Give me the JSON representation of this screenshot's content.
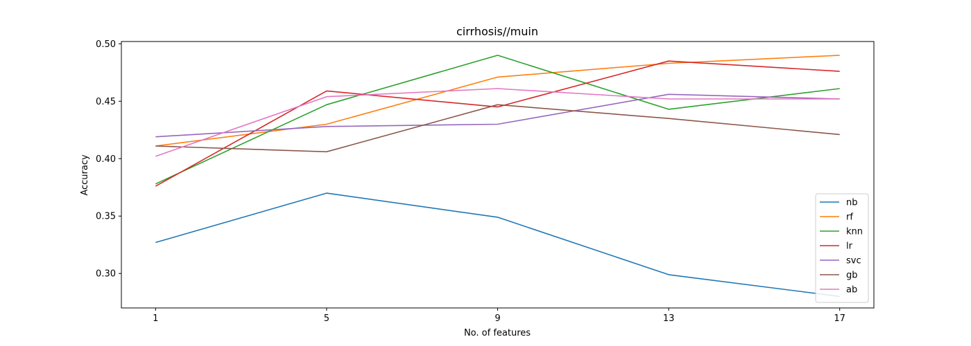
{
  "chart_data": {
    "type": "line",
    "title": "cirrhosis//muin",
    "xlabel": "No. of features",
    "ylabel": "Accuracy",
    "x": [
      1,
      5,
      9,
      13,
      17
    ],
    "xticks": [
      "1",
      "5",
      "9",
      "13",
      "17"
    ],
    "yticks": [
      "0.30",
      "0.35",
      "0.40",
      "0.45",
      "0.50"
    ],
    "ylim": [
      0.27,
      0.502
    ],
    "xlim": [
      0.2,
      17.8
    ],
    "grid": false,
    "legend_position": "lower-right",
    "series": [
      {
        "name": "nb",
        "color": "#1f77b4",
        "values": [
          0.327,
          0.37,
          0.349,
          0.299,
          0.28
        ]
      },
      {
        "name": "rf",
        "color": "#ff7f0e",
        "values": [
          0.411,
          0.43,
          0.471,
          0.483,
          0.49
        ]
      },
      {
        "name": "knn",
        "color": "#2ca02c",
        "values": [
          0.378,
          0.447,
          0.49,
          0.443,
          0.461
        ]
      },
      {
        "name": "lr",
        "color": "#d62728",
        "values": [
          0.376,
          0.459,
          0.445,
          0.485,
          0.476
        ]
      },
      {
        "name": "svc",
        "color": "#9467bd",
        "values": [
          0.419,
          0.428,
          0.43,
          0.456,
          0.452
        ]
      },
      {
        "name": "gb",
        "color": "#8c564b",
        "values": [
          0.411,
          0.406,
          0.447,
          0.435,
          0.421
        ]
      },
      {
        "name": "ab",
        "color": "#e377c2",
        "values": [
          0.402,
          0.454,
          0.461,
          0.452,
          0.452
        ]
      }
    ]
  }
}
